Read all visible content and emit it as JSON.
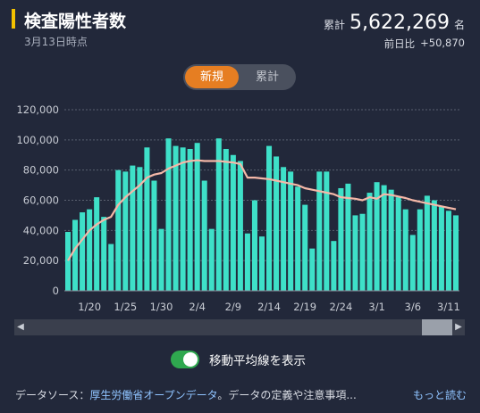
{
  "header": {
    "title": "検査陽性者数",
    "date_label": "3月13日時点",
    "total_label": "累計",
    "total_value": "5,622,269",
    "total_unit": "名",
    "change_label": "前日比",
    "change_value": "+50,870",
    "accent_color": "#f2c100"
  },
  "toggle": {
    "options": [
      "新規",
      "累計"
    ],
    "active": "新規",
    "active_color": "#e67e22"
  },
  "chart_data": {
    "type": "bar",
    "bar_color": "#3ee0c8",
    "line_color": "#f5b8a8",
    "ylim": [
      0,
      120000
    ],
    "yticks": [
      "0",
      "20,000",
      "40,000",
      "60,000",
      "80,000",
      "100,000",
      "120,000"
    ],
    "xtick_labels": [
      "1/20",
      "1/25",
      "1/30",
      "2/4",
      "2/9",
      "2/14",
      "2/19",
      "2/24",
      "3/1",
      "3/6",
      "3/11"
    ],
    "xtick_day_index": [
      3,
      8,
      13,
      18,
      23,
      28,
      33,
      38,
      43,
      48,
      53
    ],
    "values": [
      39000,
      47000,
      52000,
      54000,
      62000,
      49000,
      31000,
      80000,
      79000,
      83000,
      82000,
      95000,
      73000,
      41000,
      101000,
      96000,
      95000,
      94000,
      98000,
      73000,
      41000,
      101000,
      94000,
      90000,
      86000,
      38000,
      60000,
      36000,
      96000,
      89000,
      82000,
      79000,
      69000,
      57000,
      28000,
      79000,
      79000,
      33000,
      68000,
      71000,
      50000,
      51000,
      65000,
      72000,
      70000,
      67000,
      62000,
      54000,
      37000,
      54000,
      63000,
      60000,
      56000,
      53000,
      50000
    ],
    "moving_average": [
      20000,
      28000,
      34000,
      40000,
      44000,
      47000,
      49000,
      57000,
      62000,
      66000,
      70000,
      75000,
      77000,
      78000,
      81000,
      83000,
      85000,
      86000,
      86500,
      86000,
      86000,
      86000,
      85500,
      85000,
      84000,
      75000,
      75000,
      74500,
      74000,
      73000,
      72000,
      71000,
      70000,
      68000,
      67000,
      66000,
      65000,
      64000,
      62000,
      61500,
      61000,
      60000,
      62000,
      61000,
      64000,
      63500,
      62500,
      61500,
      60000,
      59000,
      58000,
      57000,
      56000,
      55000,
      54000
    ]
  },
  "scrollbar": {
    "left_arrow": "◀",
    "right_arrow": "▶"
  },
  "moving_average_toggle": {
    "label": "移動平均線を表示",
    "on": true
  },
  "footer": {
    "prefix": "データソース：",
    "source_link": "厚生労働省オープンデータ",
    "suffix": "。データの定義や注意事項...",
    "more_link": "もっと読む"
  }
}
